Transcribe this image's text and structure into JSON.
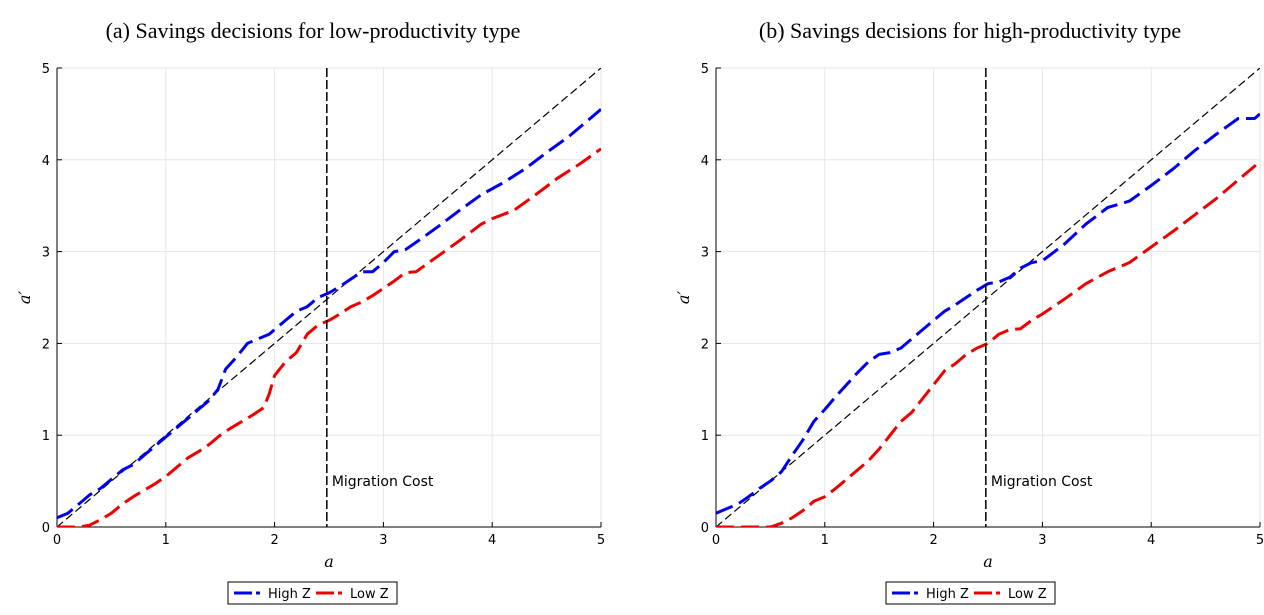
{
  "chart_data": [
    {
      "type": "line",
      "title": "(a) Savings decisions for low-productivity type",
      "xlabel": "a",
      "ylabel": "a′",
      "xlim": [
        0,
        5
      ],
      "ylim": [
        0,
        5
      ],
      "xticks": [
        0,
        1,
        2,
        3,
        4,
        5
      ],
      "yticks": [
        0,
        1,
        2,
        3,
        4,
        5
      ],
      "grid": true,
      "legend_position": "bottom-center",
      "annotations": [
        {
          "type": "vline",
          "x": 2.48,
          "label": "Migration Cost",
          "label_y": 0.5
        }
      ],
      "reference_line": {
        "type": "45-degree",
        "x": [
          0,
          5
        ],
        "y": [
          0,
          5
        ]
      },
      "series": [
        {
          "name": "High Z",
          "color": "#0000ee",
          "x": [
            0,
            0.1,
            0.2,
            0.3,
            0.4,
            0.5,
            0.6,
            0.7,
            0.8,
            0.9,
            1.0,
            1.1,
            1.2,
            1.3,
            1.4,
            1.48,
            1.55,
            1.65,
            1.75,
            1.85,
            1.95,
            2.1,
            2.2,
            2.3,
            2.4,
            2.5,
            2.6,
            2.7,
            2.8,
            2.9,
            3.0,
            3.1,
            3.2,
            3.3,
            3.5,
            3.7,
            3.9,
            4.1,
            4.3,
            4.5,
            4.7,
            5.0
          ],
          "y": [
            0.1,
            0.15,
            0.25,
            0.35,
            0.42,
            0.52,
            0.62,
            0.68,
            0.78,
            0.88,
            0.98,
            1.08,
            1.18,
            1.28,
            1.38,
            1.5,
            1.72,
            1.85,
            2.0,
            2.05,
            2.1,
            2.25,
            2.35,
            2.4,
            2.5,
            2.55,
            2.62,
            2.7,
            2.78,
            2.78,
            2.88,
            3.0,
            3.02,
            3.1,
            3.27,
            3.45,
            3.62,
            3.75,
            3.9,
            4.08,
            4.25,
            4.55
          ]
        },
        {
          "name": "Low Z",
          "color": "#ee0000",
          "x": [
            0,
            0.2,
            0.3,
            0.4,
            0.5,
            0.6,
            0.7,
            0.8,
            0.9,
            1.0,
            1.1,
            1.2,
            1.3,
            1.4,
            1.5,
            1.6,
            1.7,
            1.8,
            1.9,
            1.95,
            2.0,
            2.1,
            2.2,
            2.3,
            2.4,
            2.5,
            2.6,
            2.7,
            2.8,
            2.9,
            3.0,
            3.1,
            3.2,
            3.3,
            3.5,
            3.7,
            3.9,
            4.0,
            4.2,
            4.4,
            4.6,
            4.8,
            5.0
          ],
          "y": [
            0.0,
            0.0,
            0.02,
            0.08,
            0.15,
            0.25,
            0.33,
            0.4,
            0.47,
            0.55,
            0.65,
            0.75,
            0.82,
            0.9,
            1.0,
            1.08,
            1.15,
            1.22,
            1.3,
            1.45,
            1.65,
            1.8,
            1.9,
            2.1,
            2.2,
            2.25,
            2.32,
            2.4,
            2.45,
            2.52,
            2.6,
            2.68,
            2.77,
            2.78,
            2.95,
            3.12,
            3.3,
            3.36,
            3.45,
            3.62,
            3.8,
            3.95,
            4.12
          ]
        }
      ]
    },
    {
      "type": "line",
      "title": "(b) Savings decisions for high-productivity type",
      "xlabel": "a",
      "ylabel": "a′",
      "xlim": [
        0,
        5
      ],
      "ylim": [
        0,
        5
      ],
      "xticks": [
        0,
        1,
        2,
        3,
        4,
        5
      ],
      "yticks": [
        0,
        1,
        2,
        3,
        4,
        5
      ],
      "grid": true,
      "legend_position": "bottom-center",
      "annotations": [
        {
          "type": "vline",
          "x": 2.48,
          "label": "Migration Cost",
          "label_y": 0.5
        }
      ],
      "reference_line": {
        "type": "45-degree",
        "x": [
          0,
          5
        ],
        "y": [
          0,
          5
        ]
      },
      "series": [
        {
          "name": "High Z",
          "color": "#0000ee",
          "x": [
            0,
            0.1,
            0.2,
            0.3,
            0.4,
            0.5,
            0.6,
            0.7,
            0.8,
            0.9,
            1.0,
            1.1,
            1.2,
            1.3,
            1.4,
            1.5,
            1.6,
            1.7,
            1.8,
            1.9,
            2.0,
            2.1,
            2.2,
            2.3,
            2.4,
            2.5,
            2.6,
            2.7,
            2.8,
            2.9,
            3.0,
            3.2,
            3.4,
            3.6,
            3.8,
            4.0,
            4.2,
            4.4,
            4.6,
            4.8,
            4.95,
            5.0
          ],
          "y": [
            0.15,
            0.2,
            0.25,
            0.33,
            0.42,
            0.5,
            0.6,
            0.78,
            0.95,
            1.15,
            1.28,
            1.42,
            1.55,
            1.68,
            1.8,
            1.88,
            1.9,
            1.95,
            2.05,
            2.15,
            2.25,
            2.35,
            2.42,
            2.5,
            2.58,
            2.65,
            2.67,
            2.72,
            2.82,
            2.88,
            2.9,
            3.08,
            3.3,
            3.48,
            3.55,
            3.72,
            3.9,
            4.1,
            4.28,
            4.45,
            4.45,
            4.5
          ]
        },
        {
          "name": "Low Z",
          "color": "#ee0000",
          "x": [
            0,
            0.2,
            0.4,
            0.5,
            0.6,
            0.7,
            0.8,
            0.9,
            1.0,
            1.1,
            1.2,
            1.3,
            1.4,
            1.5,
            1.6,
            1.7,
            1.8,
            1.9,
            2.0,
            2.1,
            2.2,
            2.3,
            2.4,
            2.5,
            2.6,
            2.7,
            2.8,
            2.9,
            3.0,
            3.2,
            3.4,
            3.6,
            3.8,
            4.0,
            4.2,
            4.4,
            4.6,
            4.8,
            5.0
          ],
          "y": [
            0.0,
            0.0,
            0.0,
            0.0,
            0.04,
            0.1,
            0.18,
            0.28,
            0.33,
            0.42,
            0.52,
            0.62,
            0.72,
            0.85,
            1.0,
            1.15,
            1.25,
            1.4,
            1.55,
            1.7,
            1.78,
            1.88,
            1.95,
            2.0,
            2.1,
            2.15,
            2.16,
            2.25,
            2.32,
            2.48,
            2.65,
            2.78,
            2.88,
            3.05,
            3.22,
            3.4,
            3.58,
            3.78,
            3.98
          ]
        }
      ]
    }
  ]
}
